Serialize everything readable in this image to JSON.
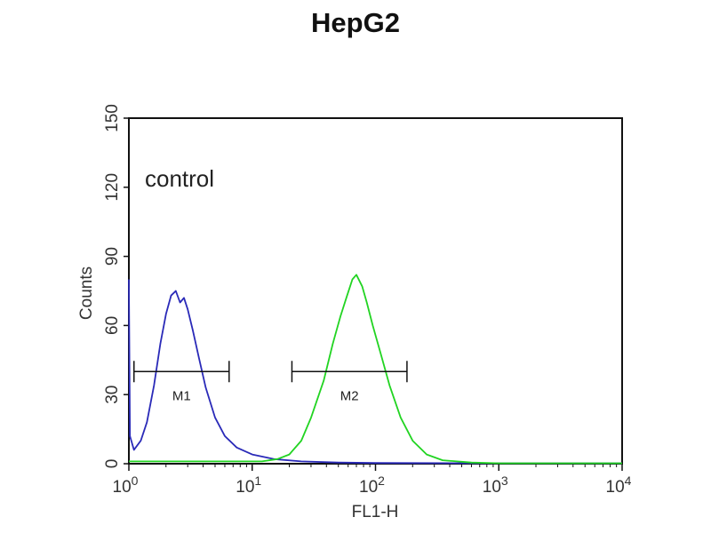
{
  "chart_data": {
    "type": "line",
    "title": "HepG2",
    "xlabel": "FL1-H",
    "ylabel": "Counts",
    "x_scale": "log",
    "xlim": [
      1,
      10000
    ],
    "ylim": [
      0,
      150
    ],
    "x_ticks": [
      {
        "value": 1,
        "base": "10",
        "exp": "0"
      },
      {
        "value": 10,
        "base": "10",
        "exp": "1"
      },
      {
        "value": 100,
        "base": "10",
        "exp": "2"
      },
      {
        "value": 1000,
        "base": "10",
        "exp": "3"
      },
      {
        "value": 10000,
        "base": "10",
        "exp": "4"
      }
    ],
    "y_ticks": [
      0,
      30,
      60,
      90,
      120,
      150
    ],
    "grid": false,
    "annotation": "control",
    "series": [
      {
        "color": "#2a2ab8",
        "points": [
          [
            1.0,
            80
          ],
          [
            1.02,
            12
          ],
          [
            1.1,
            6
          ],
          [
            1.25,
            10
          ],
          [
            1.4,
            18
          ],
          [
            1.6,
            34
          ],
          [
            1.8,
            52
          ],
          [
            2.0,
            65
          ],
          [
            2.2,
            73
          ],
          [
            2.4,
            75
          ],
          [
            2.6,
            70
          ],
          [
            2.8,
            72
          ],
          [
            3.0,
            67
          ],
          [
            3.3,
            58
          ],
          [
            3.7,
            46
          ],
          [
            4.2,
            33
          ],
          [
            5.0,
            20
          ],
          [
            6.0,
            12
          ],
          [
            7.5,
            7
          ],
          [
            10,
            4
          ],
          [
            15,
            2
          ],
          [
            25,
            1
          ],
          [
            50,
            0.5
          ],
          [
            100,
            0.3
          ],
          [
            1000,
            0.2
          ],
          [
            10000,
            0.2
          ]
        ]
      },
      {
        "color": "#22d422",
        "points": [
          [
            1.0,
            1
          ],
          [
            5,
            1
          ],
          [
            12,
            1
          ],
          [
            16,
            2
          ],
          [
            20,
            4
          ],
          [
            25,
            10
          ],
          [
            30,
            20
          ],
          [
            38,
            36
          ],
          [
            45,
            52
          ],
          [
            52,
            64
          ],
          [
            58,
            72
          ],
          [
            65,
            80
          ],
          [
            70,
            82
          ],
          [
            78,
            77
          ],
          [
            85,
            70
          ],
          [
            95,
            60
          ],
          [
            110,
            48
          ],
          [
            130,
            34
          ],
          [
            160,
            20
          ],
          [
            200,
            10
          ],
          [
            260,
            4
          ],
          [
            350,
            1.5
          ],
          [
            600,
            0.5
          ],
          [
            1000,
            0.2
          ],
          [
            10000,
            0.2
          ]
        ]
      }
    ],
    "gates": [
      {
        "label": "M1",
        "x_start": 1.1,
        "x_end": 6.5,
        "y": 40
      },
      {
        "label": "M2",
        "x_start": 21,
        "x_end": 180,
        "y": 40
      }
    ]
  }
}
